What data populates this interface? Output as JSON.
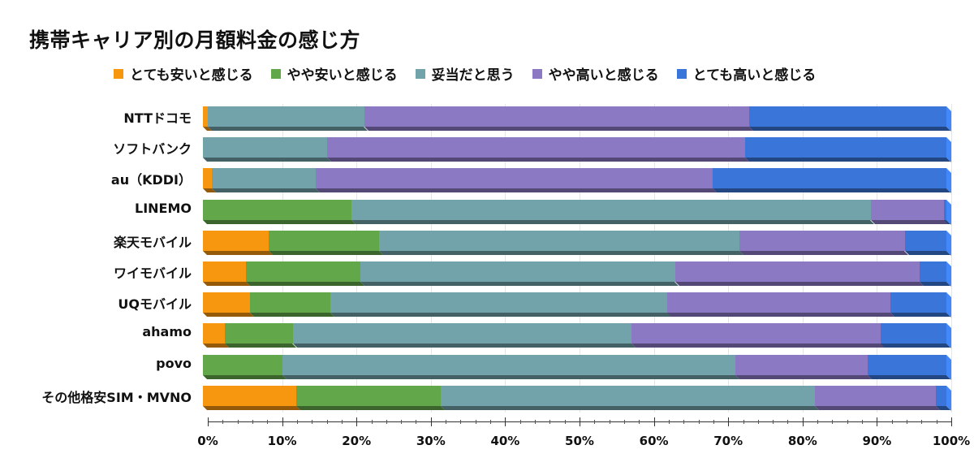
{
  "title": "携帯キャリア別の月額料金の感じ方",
  "legend": [
    {
      "label": "とても安いと感じる",
      "color": "#f7960f"
    },
    {
      "label": "やや安いと感じる",
      "color": "#62a84a"
    },
    {
      "label": "妥当だと思う",
      "color": "#72a3aa"
    },
    {
      "label": "やや高いと感じる",
      "color": "#8c79c4"
    },
    {
      "label": "とても高いと感じる",
      "color": "#3a76da"
    }
  ],
  "chart_data": {
    "type": "bar",
    "orientation": "horizontal",
    "stacked": true,
    "percent_stacked": true,
    "title": "携帯キャリア別の月額料金の感じ方",
    "xlabel": "",
    "ylabel": "",
    "xlim": [
      0,
      100
    ],
    "x_ticks": [
      "0%",
      "10%",
      "20%",
      "30%",
      "40%",
      "50%",
      "60%",
      "70%",
      "80%",
      "90%",
      "100%"
    ],
    "grid": true,
    "legend_position": "top",
    "categories": [
      "NTTドコモ",
      "ソフトバンク",
      "au（KDDI）",
      "LINEMO",
      "楽天モバイル",
      "ワイモバイル",
      "UQモバイル",
      "ahamo",
      "povo",
      "その他格安SIM・MVNO"
    ],
    "series": [
      {
        "name": "とても安いと感じる",
        "color": "#f7960f",
        "values": [
          0.7,
          0,
          1.2,
          0,
          8.8,
          5.8,
          6.3,
          3.0,
          0,
          12.6
        ]
      },
      {
        "name": "やや安いと感じる",
        "color": "#62a84a",
        "values": [
          0,
          0,
          0,
          20.0,
          14.9,
          15.4,
          10.8,
          9.1,
          10.7,
          19.4
        ]
      },
      {
        "name": "妥当だと思う",
        "color": "#72a3aa",
        "values": [
          21.0,
          16.7,
          14.0,
          69.8,
          48.5,
          42.3,
          45.4,
          45.5,
          60.9,
          50.3
        ]
      },
      {
        "name": "やや高いと感じる",
        "color": "#8c79c4",
        "values": [
          51.8,
          56.2,
          53.4,
          9.9,
          22.2,
          32.9,
          30.0,
          33.6,
          17.8,
          16.3
        ]
      },
      {
        "name": "とても高いと感じる",
        "color": "#3a76da",
        "values": [
          26.5,
          27.1,
          31.4,
          0.3,
          5.6,
          3.6,
          7.5,
          8.8,
          10.6,
          1.4
        ]
      }
    ]
  }
}
